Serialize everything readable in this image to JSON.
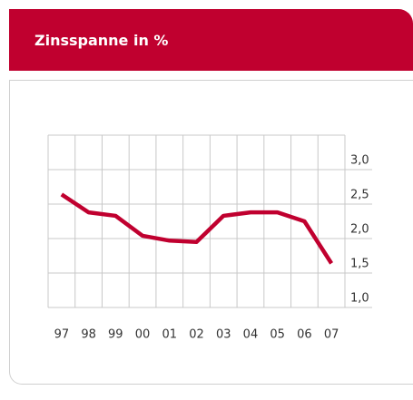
{
  "chart_data": {
    "type": "line",
    "title": "Zinsspanne in %",
    "categories": [
      "97",
      "98",
      "99",
      "00",
      "01",
      "02",
      "03",
      "04",
      "05",
      "06",
      "07"
    ],
    "series": [
      {
        "name": "Zinsspanne",
        "color": "#c0002f",
        "values": [
          2.64,
          2.38,
          2.33,
          2.04,
          1.97,
          1.95,
          2.33,
          2.38,
          2.38,
          2.25,
          1.64
        ]
      }
    ],
    "ylim": [
      1.0,
      3.5
    ],
    "yticks": [
      {
        "value": 1.0,
        "label": "1,0"
      },
      {
        "value": 1.5,
        "label": "1,5"
      },
      {
        "value": 2.0,
        "label": "2,0"
      },
      {
        "value": 2.5,
        "label": "2,5"
      },
      {
        "value": 3.0,
        "label": "3,0"
      }
    ],
    "grid": true
  }
}
